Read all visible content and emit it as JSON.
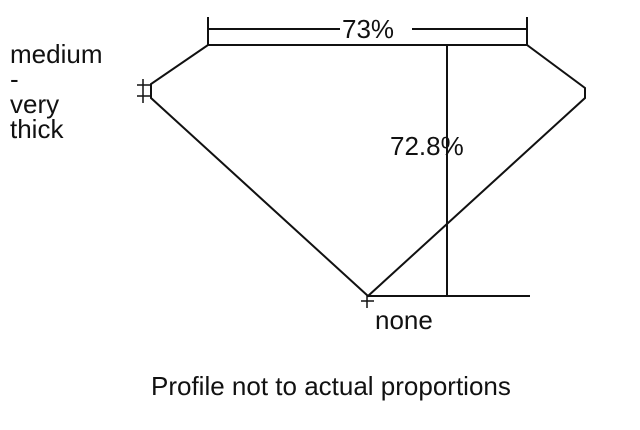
{
  "labels": {
    "table_percent": "73%",
    "depth_percent": "72.8%",
    "girdle_line1": "medium",
    "girdle_line2": "-",
    "girdle_line3": "very",
    "girdle_line4": "thick",
    "culet": "none",
    "caption": "Profile not to actual proportions"
  },
  "colors": {
    "line": "#111111",
    "background": "#ffffff"
  }
}
